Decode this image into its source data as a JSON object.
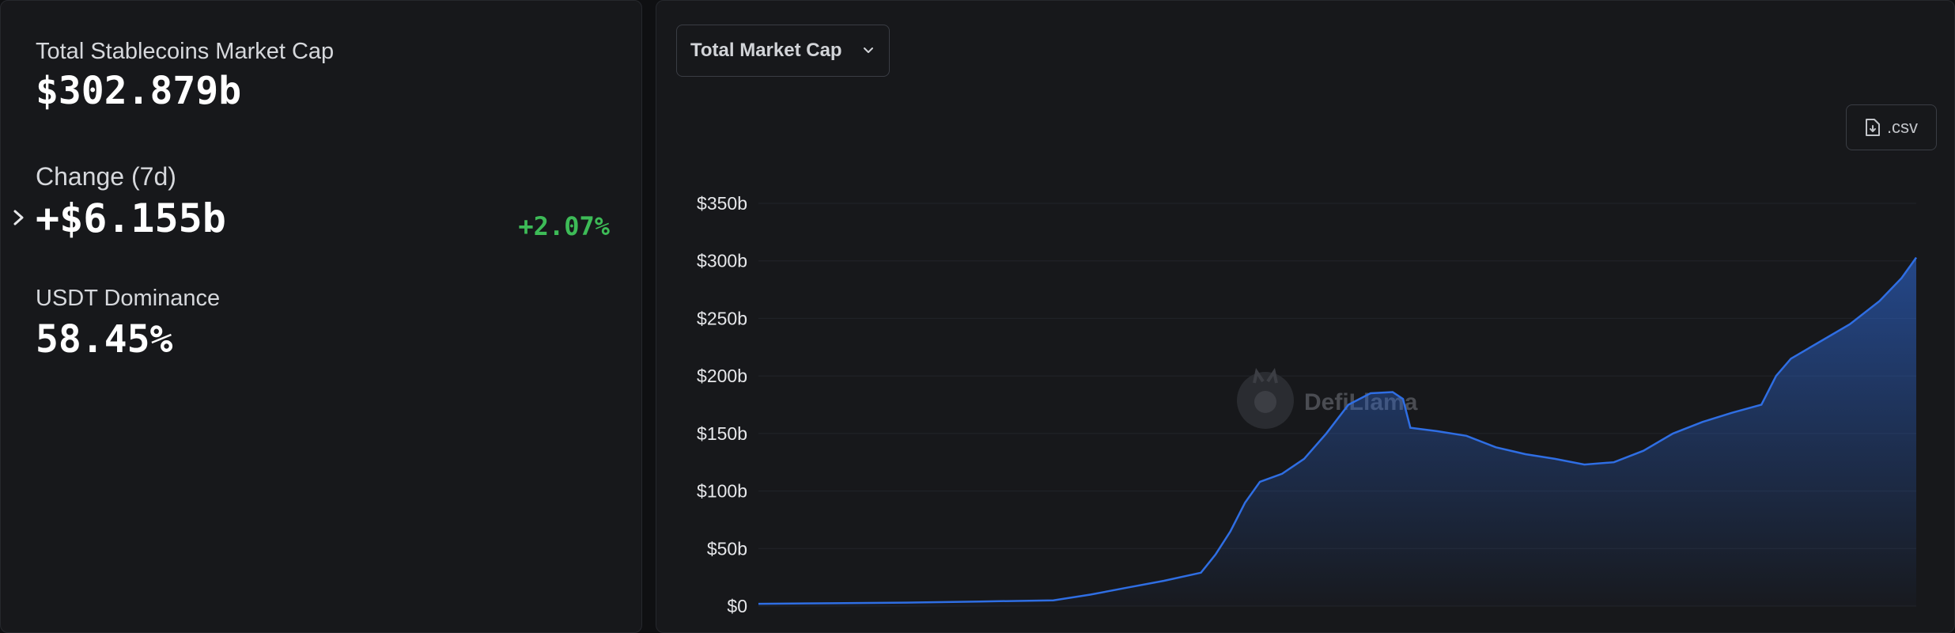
{
  "stats": {
    "market_cap_label": "Total Stablecoins Market Cap",
    "market_cap_value": "$302.879b",
    "change_label": "Change (7d)",
    "change_value": "+$6.155b",
    "change_pct": "+2.07%",
    "dominance_label": "USDT Dominance",
    "dominance_value": "58.45%"
  },
  "chart_controls": {
    "metric_select_label": "Total Market Cap",
    "csv_label": ".csv"
  },
  "watermark": {
    "text": "DefiLlama"
  },
  "colors": {
    "accent_line": "#2f6ee3",
    "positive": "#3dbb57",
    "panel_bg": "#17181b"
  },
  "chart_data": {
    "type": "area",
    "title": "",
    "xlabel": "",
    "ylabel": "",
    "y_ticks": [
      "$0",
      "$50b",
      "$100b",
      "$150b",
      "$200b",
      "$250b",
      "$300b",
      "$350b"
    ],
    "ylim": [
      0,
      350
    ],
    "xlim": [
      2018.0,
      2025.85
    ],
    "grid": true,
    "series": [
      {
        "x": [
          2018.0,
          2018.5,
          2019.0,
          2019.5,
          2020.0,
          2020.25,
          2020.5,
          2020.75,
          2021.0,
          2021.1,
          2021.2,
          2021.3,
          2021.4,
          2021.55,
          2021.7,
          2021.85,
          2022.0,
          2022.15,
          2022.3,
          2022.37,
          2022.42,
          2022.6,
          2022.8,
          2023.0,
          2023.2,
          2023.4,
          2023.6,
          2023.8,
          2024.0,
          2024.2,
          2024.4,
          2024.6,
          2024.8,
          2024.9,
          2025.0,
          2025.2,
          2025.4,
          2025.6,
          2025.75,
          2025.85
        ],
        "values": [
          2,
          2.5,
          3,
          4,
          5,
          10,
          16,
          22,
          29,
          45,
          65,
          90,
          108,
          115,
          128,
          150,
          175,
          185,
          186,
          180,
          155,
          152,
          148,
          138,
          132,
          128,
          123,
          125,
          135,
          150,
          160,
          168,
          175,
          200,
          215,
          230,
          245,
          265,
          285,
          302.9
        ]
      }
    ]
  }
}
